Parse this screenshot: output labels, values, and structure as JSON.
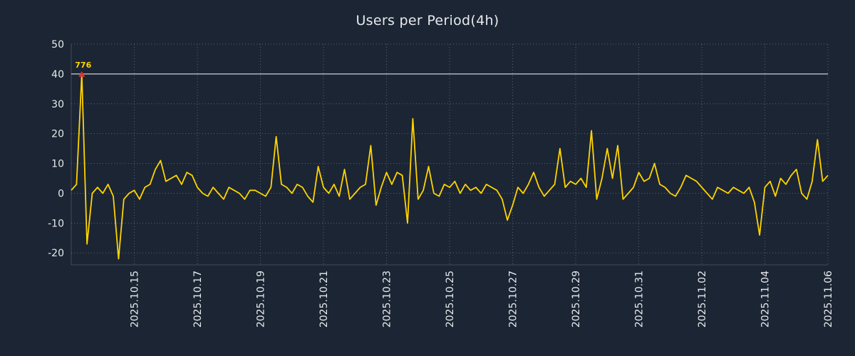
{
  "title": "Users per Period(4h)",
  "colors": {
    "background": "#1b2534",
    "line": "#ffd400",
    "grid": "#8892a0",
    "text": "#e8eaed",
    "reference_line": "#cfcfcf",
    "marker": "#e03131",
    "annotation": "#ffd400"
  },
  "chart_data": {
    "type": "line",
    "title": "Users per Period(4h)",
    "x_start": "2025-10-13 00:00",
    "x_step_hours": 4,
    "values": [
      1,
      3,
      40,
      -17,
      0,
      2,
      0,
      3,
      -1,
      -22,
      -2,
      0,
      1,
      -2,
      2,
      3,
      8,
      11,
      4,
      5,
      6,
      3,
      7,
      6,
      2,
      0,
      -1,
      2,
      0,
      -2,
      2,
      1,
      0,
      -2,
      1,
      1,
      0,
      -1,
      2,
      19,
      3,
      2,
      0,
      3,
      2,
      -1,
      -3,
      9,
      2,
      0,
      3,
      -1,
      8,
      -2,
      0,
      2,
      3,
      16,
      -4,
      2,
      7,
      3,
      7,
      6,
      -10,
      25,
      -2,
      1,
      9,
      0,
      -1,
      3,
      2,
      4,
      0,
      3,
      1,
      2,
      0,
      3,
      2,
      1,
      -2,
      -9,
      -4,
      2,
      0,
      3,
      7,
      2,
      -1,
      1,
      3,
      15,
      2,
      4,
      3,
      5,
      2,
      21,
      -2,
      5,
      15,
      5,
      16,
      -2,
      0,
      2,
      7,
      4,
      5,
      10,
      3,
      2,
      0,
      -1,
      2,
      6,
      5,
      4,
      2,
      0,
      -2,
      2,
      1,
      0,
      2,
      1,
      0,
      2,
      -3,
      -14,
      2,
      4,
      -1,
      5,
      3,
      6,
      8,
      0,
      -2,
      4,
      18,
      4,
      6
    ],
    "y_ticks": [
      50,
      40,
      30,
      20,
      10,
      0,
      -10,
      -20
    ],
    "ylim": [
      -24,
      50
    ],
    "x_tick_labels": [
      "2025.10.15",
      "2025.10.17",
      "2025.10.19",
      "2025.10.21",
      "2025.10.23",
      "2025.10.25",
      "2025.10.27",
      "2025.10.29",
      "2025.10.31",
      "2025.11.02",
      "2025.11.04",
      "2025.11.06"
    ],
    "x_tick_indices": [
      12,
      24,
      36,
      48,
      60,
      72,
      84,
      96,
      108,
      120,
      132,
      144
    ],
    "reference_line_y": 40,
    "peak_annotation": {
      "label": "776",
      "index": 2,
      "display_value": 40,
      "marker": "red-triangle"
    },
    "legend": null,
    "grid": true
  }
}
